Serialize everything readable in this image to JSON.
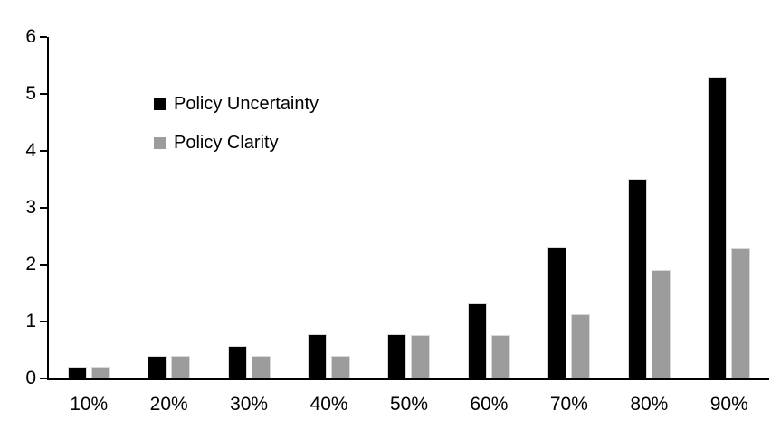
{
  "chart_data": {
    "type": "bar",
    "title": "",
    "xlabel": "",
    "ylabel": "",
    "categories": [
      "10%",
      "20%",
      "30%",
      "40%",
      "50%",
      "60%",
      "70%",
      "80%",
      "90%"
    ],
    "series": [
      {
        "name": "Policy Uncertainty",
        "color": "#000000",
        "values": [
          0.2,
          0.4,
          0.57,
          0.77,
          0.78,
          1.32,
          2.3,
          3.5,
          5.3
        ]
      },
      {
        "name": "Policy Clarity",
        "color": "#9c9c9c",
        "values": [
          0.2,
          0.39,
          0.39,
          0.39,
          0.76,
          0.76,
          1.13,
          1.9,
          2.28
        ]
      }
    ],
    "ylim": [
      0,
      6
    ],
    "yticks": [
      0,
      1,
      2,
      3,
      4,
      5,
      6
    ],
    "grid": false,
    "legend_position": "top-left-inside",
    "axis_color": "#000000",
    "background_color": "#ffffff"
  }
}
